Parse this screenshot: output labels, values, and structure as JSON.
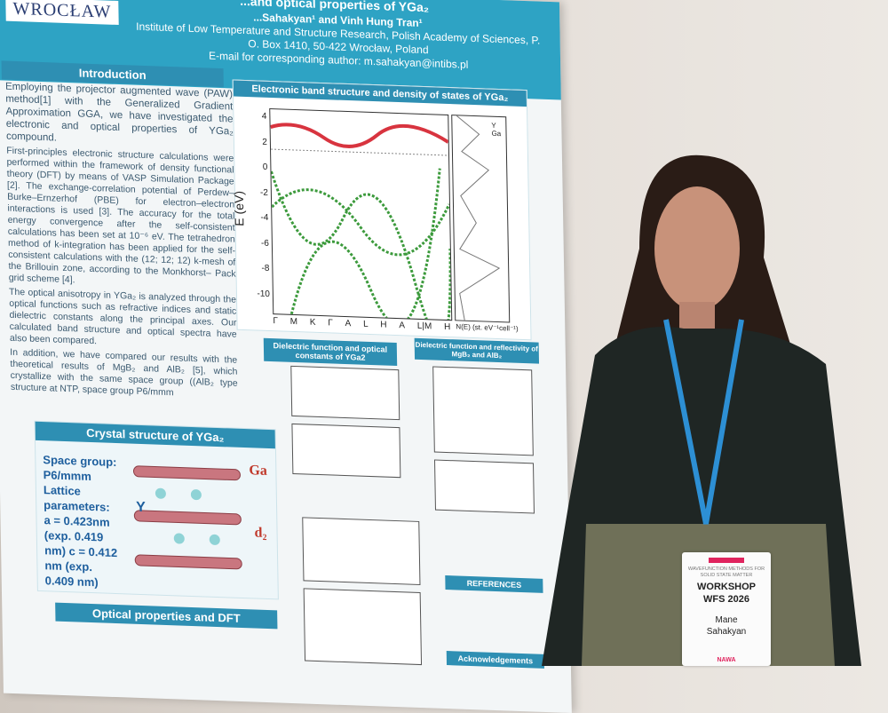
{
  "poster": {
    "logo_text": "WROCŁAW",
    "title": "...and optical properties of YGa₂",
    "authors": "...Sahakyan¹ and Vinh Hung Tran¹",
    "affiliation": "Institute of Low Temperature and Structure Research, Polish Academy of Sciences, P. O. Box 1410, 50-422 Wrocław, Poland",
    "email": "E-mail for corresponding author: m.sahakyan@intibs.pl",
    "sections": {
      "introduction": "Introduction",
      "band_structure": "Electronic band structure and density of states of YGa₂",
      "crystal": "Crystal structure of YGa₂",
      "optical": "Optical properties and DFT",
      "dielectric": "Dielectric function and optical constants of YGa2",
      "dielectric_mgb2": "Dielectric function and reflectivity of MgB₂ and AlB₂",
      "references": "REFERENCES",
      "acknowledgements": "Acknowledgements"
    },
    "intro_text_1": "Employing the projector augmented wave (PAW) method[1] with the Generalized Gradient Approximation GGA, we have investigated the electronic and optical properties of YGa₂ compound.",
    "intro_text_2": "First-principles electronic structure calculations were performed within the framework of density functional theory (DFT) by means of VASP Simulation Package [2]. The exchange-correlation potential of Perdew–Burke–Ernzerhof (PBE) for electron–electron interactions is used [3]. The accuracy for the total energy convergence after the self-consistent calculations has been set at 10⁻⁶ eV. The tetrahedron method of k-integration has been applied for the self-consistent calculations with the (12; 12; 12) k-mesh of the Brillouin zone, according to the Monkhorst– Pack grid scheme [4].",
    "intro_text_3": "The optical anisotropy in YGa₂ is analyzed through the optical functions such as refractive indices and static dielectric constants along the principal axes. Our calculated band structure and optical spectra have also been compared.",
    "intro_text_4": "In addition, we have compared our results with the theoretical results of MgB₂ and AlB₂ [5], which crystallize with the same space group ((AlB₂ type structure at NTP, space group P6/mmm",
    "crystal_text": "Space group: P6/mmm Lattice parameters: a = 0.423nm (exp. 0.419 nm) c = 0.412 nm (exp. 0.409 nm)",
    "crystal_labels": {
      "ga": "Ga",
      "y": "Y",
      "d2": "d₂"
    },
    "band_axis": {
      "ylabel": "E (eV)",
      "yticks": [
        "4",
        "2",
        "0",
        "-2",
        "-4",
        "-6",
        "-8",
        "-10"
      ],
      "xticks": [
        "Γ",
        "M",
        "K",
        "Γ",
        "A",
        "L",
        "H",
        "A",
        "L|M",
        "H"
      ],
      "dos_xlabel": "N(E) (st. eV⁻¹cell⁻¹)",
      "legend": [
        "Y",
        "Ga"
      ]
    },
    "colors": {
      "header": "#2ea3c4",
      "section_bar": "#2e8fb3",
      "band_red": "#d8343f",
      "band_green": "#3c9a3c"
    }
  },
  "badge": {
    "event": "WAVEFUNCTION METHODS FOR SOLID STATE MATTER",
    "workshop": "WORKSHOP",
    "code": "WFS 2026",
    "first_name": "Mane",
    "last_name": "Sahakyan",
    "sponsor": "NAWA"
  }
}
